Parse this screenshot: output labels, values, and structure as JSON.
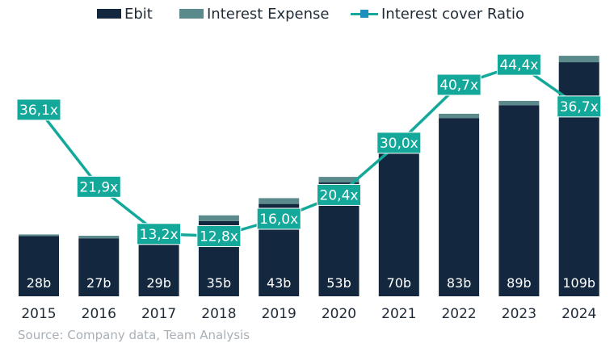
{
  "colors": {
    "ebit": "#13283f",
    "interest": "#5b8a8c",
    "ratio": "#13a89a",
    "text": "#1f2a36",
    "source": "#a9b0b6"
  },
  "legend": {
    "ebit": "Ebit",
    "interest": "Interest Expense",
    "ratio": "Interest cover Ratio"
  },
  "source": "Source: Company data,  Team Analysis",
  "chart_data": {
    "type": "bar",
    "categories": [
      "2015",
      "2016",
      "2017",
      "2018",
      "2019",
      "2020",
      "2021",
      "2022",
      "2023",
      "2024"
    ],
    "series": [
      {
        "name": "Ebit",
        "values": [
          28,
          27,
          29,
          35,
          43,
          53,
          70,
          83,
          89,
          109
        ],
        "labels": [
          "28b",
          "27b",
          "29b",
          "35b",
          "43b",
          "53b",
          "70b",
          "83b",
          "89b",
          "109b"
        ]
      },
      {
        "name": "Interest Expense",
        "values": [
          0.8,
          1.2,
          2.2,
          2.7,
          2.7,
          2.6,
          2.3,
          2.0,
          2.0,
          3.0
        ]
      },
      {
        "name": "Interest cover Ratio",
        "type": "line",
        "values": [
          36.1,
          21.9,
          13.2,
          12.8,
          16.0,
          20.4,
          30.0,
          40.7,
          44.4,
          36.7
        ],
        "labels": [
          "36,1x",
          "21,9x",
          "13,2x",
          "12,8x",
          "16,0x",
          "20,4x",
          "30,0x",
          "40,7x",
          "44,4x",
          "36,7x"
        ]
      }
    ],
    "grid": false,
    "legend_position": "top"
  }
}
